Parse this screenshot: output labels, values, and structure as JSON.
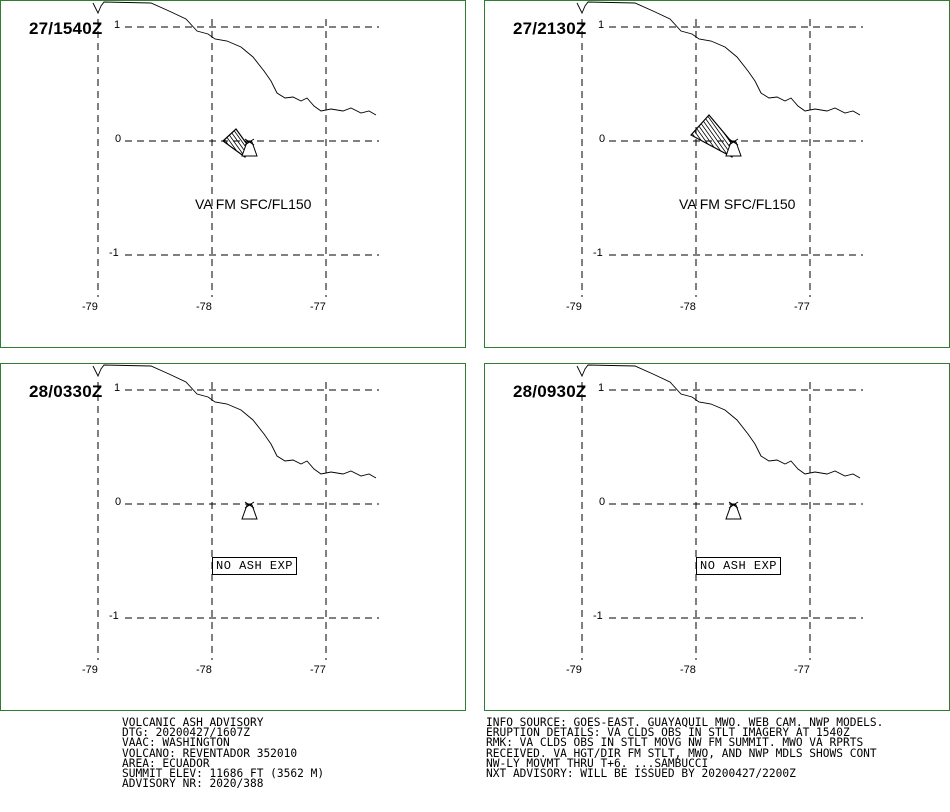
{
  "panels": [
    {
      "time": "27/1540Z",
      "label": "VA FM SFC/FL150",
      "noash": ""
    },
    {
      "time": "27/2130Z",
      "label": "VA FM SFC/FL150",
      "noash": ""
    },
    {
      "time": "28/0330Z",
      "label": "",
      "noash": "NO ASH EXP"
    },
    {
      "time": "28/0930Z",
      "label": "",
      "noash": "NO ASH EXP"
    }
  ],
  "axes": {
    "lat_labels": [
      "1",
      "0",
      "-1"
    ],
    "lon_labels": [
      "-79",
      "-78",
      "-77"
    ]
  },
  "advisory_left": [
    "VOLCANIC ASH ADVISORY",
    "DTG: 20200427/1607Z",
    "VAAC: WASHINGTON",
    "VOLCANO: REVENTADOR 352010",
    "AREA: ECUADOR",
    "SUMMIT ELEV: 11686 FT (3562 M)",
    "ADVISORY NR: 2020/388"
  ],
  "advisory_right": [
    "INFO SOURCE: GOES-EAST. GUAYAQUIL MWO. WEB CAM. NWP MODELS.",
    "ERUPTION DETAILS: VA CLDS OBS IN STLT IMAGERY AT 1540Z",
    "RMK: VA CLDS OBS IN STLT MOVG NW FM SUMMIT. MWO VA RPRTS",
    "RECEIVED. VA HGT/DIR FM STLT, MWO, AND NWP MDLS SHOWS CONT",
    "NW-LY MOVMT THRU T+6. ...SAMBUCCI",
    "NXT ADVISORY: WILL BE ISSUED BY 20200427/2200Z"
  ],
  "colors": {
    "panel_border": "#2e7d32",
    "ink": "#000000"
  }
}
